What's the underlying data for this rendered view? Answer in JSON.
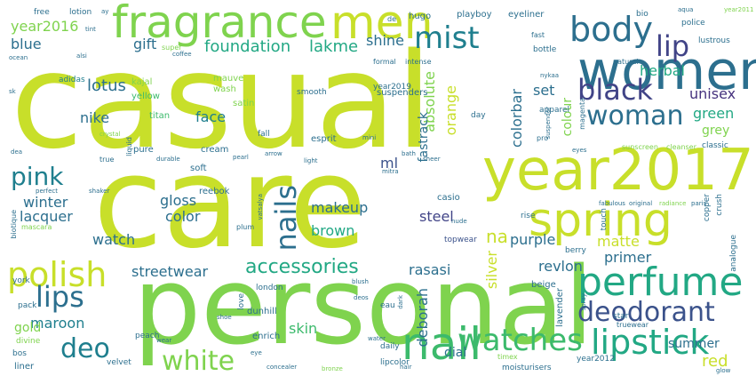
{
  "palette": {
    "yellow_green": "#c8df2a",
    "light_green": "#7fd34e",
    "green": "#3cba6c",
    "teal": "#22a884",
    "dark_teal": "#1f7f8e",
    "blue": "#2c6f8e",
    "dark_blue": "#3b528b",
    "navy": "#414487",
    "purple": "#46327e",
    "dark_purple": "#440154"
  },
  "words": {
    "casual": "casual",
    "care": "care",
    "personal": "personal",
    "women": "women",
    "year2017": "year2017",
    "spring": "spring",
    "fragrance": "fragrance",
    "men": "men",
    "body": "body",
    "mist": "mist",
    "lip": "lip",
    "black": "black",
    "woman": "woman",
    "perfume": "perfume",
    "nail": "nail",
    "lipstick": "lipstick",
    "watches": "watches",
    "deodorant": "deodorant",
    "nails": "nails",
    "polish": "polish",
    "pink": "pink",
    "lips": "lips",
    "deo": "deo",
    "white": "white",
    "accessories": "accessories",
    "year2016": "year2016",
    "blue": "blue",
    "gift": "gift",
    "foundation": "foundation",
    "lakme": "lakme",
    "shine": "shine",
    "set": "set",
    "herbal": "herbal",
    "unisex": "unisex",
    "lotus": "lotus",
    "nike": "nike",
    "face": "face",
    "absolute": "absolute",
    "orange": "orange",
    "colorbar": "colorbar",
    "colour": "colour",
    "green": "green",
    "grey": "grey",
    "fastrack": "fastrack",
    "ml": "ml",
    "makeup": "makeup",
    "gloss": "gloss",
    "color": "color",
    "winter": "winter",
    "lacquer": "lacquer",
    "watch": "watch",
    "brown": "brown",
    "steel": "steel",
    "na": "na",
    "purple": "purple",
    "matte": "matte",
    "primer": "primer",
    "revlon": "revlon",
    "rasasi": "rasasi",
    "streetwear": "streetwear",
    "silver": "silver",
    "deborah": "deborah",
    "maroon": "maroon",
    "gold": "gold",
    "skin": "skin",
    "dial": "dial",
    "summer": "summer",
    "red": "red",
    "mauve": "mauve",
    "kajal": "kajal",
    "wash": "wash",
    "satin": "satin",
    "yellow": "yellow",
    "adidas": "adidas",
    "titan": "titan",
    "year2019": "year2019",
    "suspenders": "suspenders",
    "apparel": "apparel",
    "day": "day",
    "pure": "pure",
    "cream": "cream",
    "esprit": "esprit",
    "fall": "fall",
    "smooth": "smooth",
    "reebok": "reebok",
    "soft": "soft",
    "classic": "classic",
    "cleanser": "cleanser",
    "sunscreen": "sunscreen",
    "copper": "copper",
    "crush": "crush",
    "casio": "casio",
    "topwear": "topwear",
    "beige": "beige",
    "berry": "berry",
    "rise": "rise",
    "touch": "touch",
    "analogue": "analogue",
    "lavender": "lavender",
    "love": "love",
    "london": "london",
    "dunhill": "dunhill",
    "eau": "eau",
    "enrich": "enrich",
    "peach": "peach",
    "daily": "daily",
    "divine": "divine",
    "pack": "pack",
    "york": "york",
    "liner": "liner",
    "bos": "bos",
    "velvet": "velvet",
    "moisturisers": "moisturisers",
    "timex": "timex",
    "lipcolor": "lipcolor",
    "year2012": "year2012",
    "star": "star",
    "truewear": "truewear",
    "free": "free",
    "lotion": "lotion",
    "hugo": "hugo",
    "playboy": "playboy",
    "eyeliner": "eyeliner",
    "bio": "bio",
    "police": "police",
    "lustrous": "lustrous",
    "fast": "fast",
    "bottle": "bottle",
    "natural": "natural",
    "formal": "formal",
    "intense": "intense",
    "super": "super",
    "coffee": "coffee",
    "de": "de",
    "aqua": "aqua",
    "year2011": "year2011",
    "biotique": "biotique",
    "mascara": "mascara",
    "perfect": "perfect",
    "liquid": "liquid",
    "true": "true",
    "durable": "durable",
    "magenta": "magenta",
    "suspender": "suspender",
    "pro": "pro",
    "deos": "deos",
    "nude": "nude",
    "plum": "plum",
    "shoe": "shoe",
    "water": "water",
    "spray": "spray",
    "glow": "glow",
    "dark": "dark",
    "concealer": "concealer",
    "bronze": "bronze",
    "eye": "eye",
    "eyes": "eyes",
    "wear": "wear",
    "fabulous": "fabulous",
    "original": "original",
    "radiance": "radiance",
    "paris": "paris",
    "tint": "tint",
    "crystal": "crystal",
    "pearl": "pearl",
    "light": "light",
    "arrow": "arrow",
    "lotion_ay": "ay",
    "dea": "dea",
    "sk": "sk",
    "alsi": "alsi",
    "hair": "hair",
    "vatsalya": "vatsalya",
    "bath": "bath",
    "ocean": "ocean",
    "blush": "blush",
    "shaker": "shaker",
    "mini": "mini",
    "nykaa": "nykaa",
    "mitra": "mitra",
    "sheer": "sheer"
  }
}
